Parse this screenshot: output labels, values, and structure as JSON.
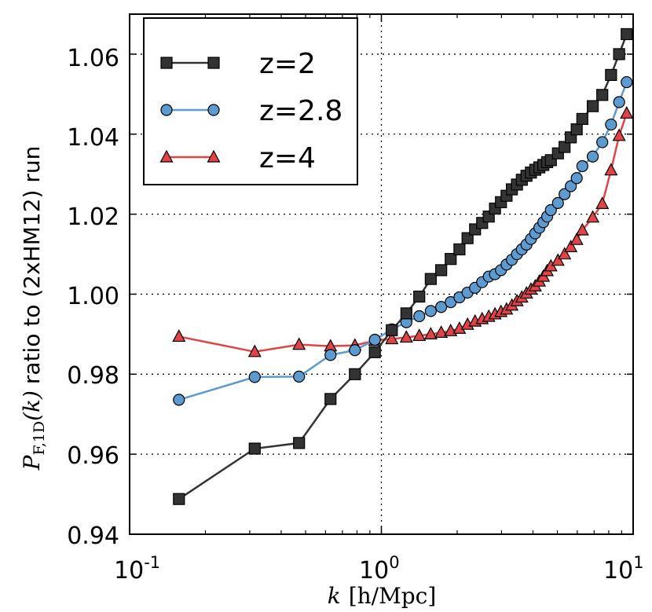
{
  "chart_data": {
    "type": "line",
    "title": "",
    "xscale": "log",
    "xlabel": "k [h/Mpc]",
    "xlabel_var": "k",
    "xlabel_unit": "[h/Mpc]",
    "ylabel": "P_{F,1D}(k) ratio to (2xHM12) run",
    "ylabel_math": "P",
    "ylabel_sub": "F,1D",
    "ylabel_arg": "(k)",
    "ylabel_text": "ratio to (2xHM12) run",
    "xlim": [
      0.1,
      10
    ],
    "ylim": [
      0.94,
      1.07
    ],
    "grid": true,
    "legend_position": "top-left",
    "xticks": [
      {
        "value": 0.1,
        "base": "10",
        "exp": "-1"
      },
      {
        "value": 1,
        "base": "10",
        "exp": "0"
      },
      {
        "value": 10,
        "base": "10",
        "exp": "1"
      }
    ],
    "yticks": [
      {
        "value": 0.94,
        "label": "0.94"
      },
      {
        "value": 0.96,
        "label": "0.96"
      },
      {
        "value": 0.98,
        "label": "0.98"
      },
      {
        "value": 1.0,
        "label": "1.00"
      },
      {
        "value": 1.02,
        "label": "1.02"
      },
      {
        "value": 1.04,
        "label": "1.04"
      },
      {
        "value": 1.06,
        "label": "1.06"
      }
    ],
    "series": [
      {
        "name": "z=2",
        "color": "#333333",
        "marker_fill": "#333333",
        "marker": "square",
        "x": [
          0.157,
          0.314,
          0.471,
          0.628,
          0.785,
          0.942,
          1.1,
          1.257,
          1.414,
          1.571,
          1.728,
          1.885,
          2.042,
          2.199,
          2.356,
          2.513,
          2.67,
          2.827,
          2.985,
          3.142,
          3.299,
          3.456,
          3.613,
          3.77,
          3.927,
          4.084,
          4.241,
          4.398,
          4.555,
          4.712,
          5.027,
          5.341,
          5.655,
          5.969,
          6.283,
          6.912,
          7.54,
          8.168,
          8.796,
          9.425
        ],
        "y": [
          0.9488,
          0.9614,
          0.9628,
          0.9738,
          0.98,
          0.9855,
          0.991,
          0.9952,
          0.9994,
          1.0038,
          1.006,
          1.0088,
          1.0112,
          1.014,
          1.0162,
          1.0178,
          1.0194,
          1.0214,
          1.023,
          1.0246,
          1.0262,
          1.0274,
          1.0286,
          1.0296,
          1.0304,
          1.0311,
          1.0317,
          1.0323,
          1.033,
          1.0335,
          1.0352,
          1.0368,
          1.0392,
          1.0412,
          1.0438,
          1.047,
          1.0498,
          1.0548,
          1.06,
          1.065
        ]
      },
      {
        "name": "z=2.8",
        "color": "#5b9bd0",
        "marker_fill": "#5b9bd0",
        "marker": "circle",
        "x": [
          0.157,
          0.314,
          0.471,
          0.628,
          0.785,
          0.942,
          1.1,
          1.257,
          1.414,
          1.571,
          1.728,
          1.885,
          2.042,
          2.199,
          2.356,
          2.513,
          2.67,
          2.827,
          2.985,
          3.142,
          3.299,
          3.456,
          3.613,
          3.77,
          3.927,
          4.084,
          4.241,
          4.398,
          4.555,
          4.712,
          5.027,
          5.341,
          5.655,
          5.969,
          6.283,
          6.912,
          7.54,
          8.168,
          8.796,
          9.425
        ],
        "y": [
          0.9736,
          0.9793,
          0.9794,
          0.9848,
          0.986,
          0.9886,
          0.9912,
          0.993,
          0.9945,
          0.9958,
          0.9968,
          0.998,
          0.9992,
          1.0004,
          1.0016,
          1.003,
          1.0044,
          1.005,
          1.006,
          1.0074,
          1.0086,
          1.01,
          1.0112,
          1.0124,
          1.0138,
          1.0152,
          1.0166,
          1.018,
          1.0194,
          1.021,
          1.0228,
          1.025,
          1.027,
          1.029,
          1.032,
          1.0344,
          1.038,
          1.0424,
          1.048,
          1.053
        ]
      },
      {
        "name": "z=4",
        "color": "#e04446",
        "marker_fill": "#e04446",
        "marker": "triangle",
        "x": [
          0.157,
          0.314,
          0.471,
          0.628,
          0.785,
          0.942,
          1.1,
          1.257,
          1.414,
          1.571,
          1.728,
          1.885,
          2.042,
          2.199,
          2.356,
          2.513,
          2.67,
          2.827,
          2.985,
          3.142,
          3.299,
          3.456,
          3.613,
          3.77,
          3.927,
          4.084,
          4.241,
          4.398,
          4.555,
          4.712,
          5.027,
          5.341,
          5.655,
          5.969,
          6.283,
          6.912,
          7.54,
          8.168,
          8.796,
          9.425
        ],
        "y": [
          0.9894,
          0.9856,
          0.9874,
          0.987,
          0.9872,
          0.9884,
          0.9888,
          0.9892,
          0.9896,
          0.99,
          0.9904,
          0.9908,
          0.9914,
          0.9924,
          0.9932,
          0.9938,
          0.9944,
          0.995,
          0.9956,
          0.9962,
          0.9972,
          0.9983,
          0.9992,
          1.0002,
          1.0012,
          1.002,
          1.0032,
          1.0044,
          1.0058,
          1.007,
          1.0084,
          1.01,
          1.0118,
          1.0136,
          1.016,
          1.0192,
          1.0226,
          1.031,
          1.0396,
          1.0452
        ]
      }
    ]
  }
}
